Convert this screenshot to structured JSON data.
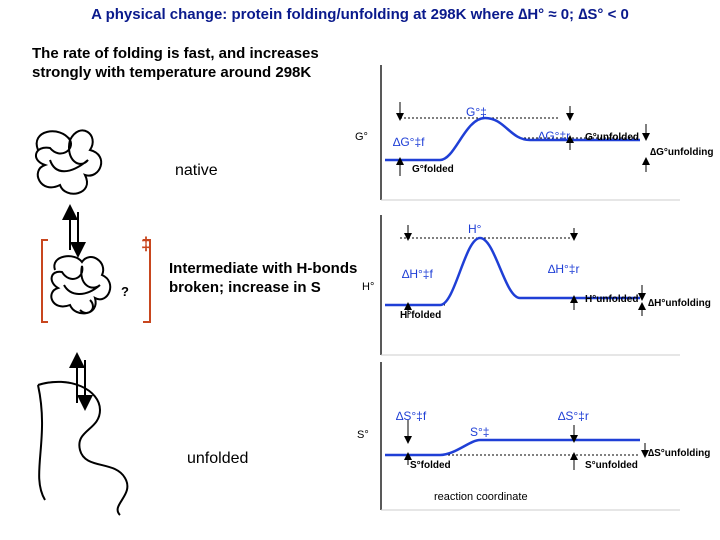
{
  "title": "A physical change: protein folding/unfolding at 298K where ∆H° ≈ 0; ∆S° < 0",
  "intro_text": "The rate of folding is fast, and increases strongly with temperature around 298K",
  "states": {
    "native": "native",
    "intermediate": "Intermediate with H-bonds broken; increase in S",
    "unfolded": "unfolded",
    "question_mark": "?",
    "transition_mark": "‡"
  },
  "panels": {
    "gibbs": {
      "axis_label": "G°",
      "ts_label": "G°‡",
      "forward_label": "∆G°‡f",
      "reverse_label": "∆G°‡r",
      "folded_label": "G°folded",
      "unfolded_label": "G°unfolded",
      "delta_label": "∆G°unfolding"
    },
    "enthalpy": {
      "axis_label": "H°",
      "ts_label": "H°",
      "forward_label": "∆H°‡f",
      "reverse_label": "∆H°‡r",
      "folded_label": "H°folded",
      "unfolded_label": "H°unfolded",
      "delta_label": "∆H°unfolding"
    },
    "entropy": {
      "axis_label": "S°",
      "ts_label": "S°‡",
      "forward_label": "∆S°‡f",
      "reverse_label": "∆S°‡r",
      "folded_label": "S°folded",
      "unfolded_label": "S°unfolded",
      "delta_label": "∆S°unfolding"
    },
    "x_axis_label": "reaction coordinate"
  },
  "colors": {
    "title": "#0a1a8c",
    "curve": "#1f3fd6",
    "bracket": "#c8461e",
    "arrow": "#000000"
  }
}
